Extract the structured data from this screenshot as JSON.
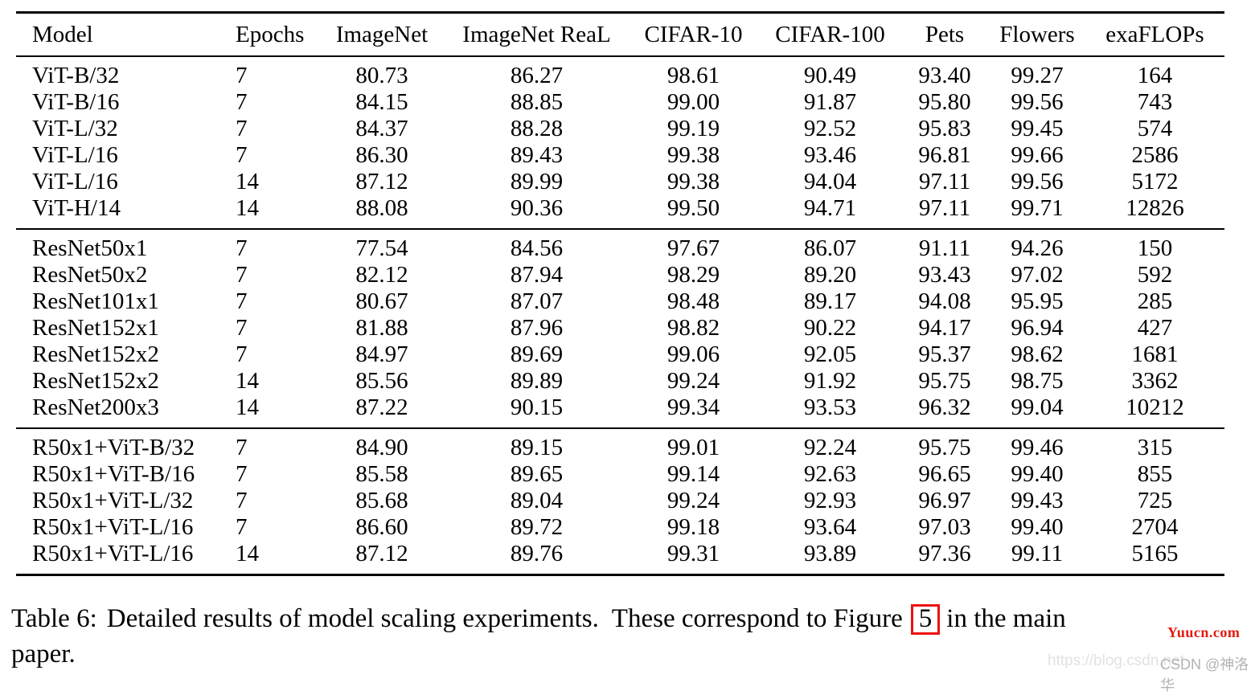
{
  "table": {
    "columns": [
      {
        "label": "Model",
        "align": "left"
      },
      {
        "label": "Epochs",
        "align": "left"
      },
      {
        "label": "ImageNet",
        "align": "center"
      },
      {
        "label": "ImageNet ReaL",
        "align": "center"
      },
      {
        "label": "CIFAR-10",
        "align": "center"
      },
      {
        "label": "CIFAR-100",
        "align": "center"
      },
      {
        "label": "Pets",
        "align": "center"
      },
      {
        "label": "Flowers",
        "align": "center"
      },
      {
        "label": "exaFLOPs",
        "align": "center"
      }
    ],
    "sections": [
      {
        "name": "vit-models",
        "rows": [
          [
            "ViT-B/32",
            "7",
            "80.73",
            "86.27",
            "98.61",
            "90.49",
            "93.40",
            "99.27",
            "164"
          ],
          [
            "ViT-B/16",
            "7",
            "84.15",
            "88.85",
            "99.00",
            "91.87",
            "95.80",
            "99.56",
            "743"
          ],
          [
            "ViT-L/32",
            "7",
            "84.37",
            "88.28",
            "99.19",
            "92.52",
            "95.83",
            "99.45",
            "574"
          ],
          [
            "ViT-L/16",
            "7",
            "86.30",
            "89.43",
            "99.38",
            "93.46",
            "96.81",
            "99.66",
            "2586"
          ],
          [
            "ViT-L/16",
            "14",
            "87.12",
            "89.99",
            "99.38",
            "94.04",
            "97.11",
            "99.56",
            "5172"
          ],
          [
            "ViT-H/14",
            "14",
            "88.08",
            "90.36",
            "99.50",
            "94.71",
            "97.11",
            "99.71",
            "12826"
          ]
        ]
      },
      {
        "name": "resnet-models",
        "rows": [
          [
            "ResNet50x1",
            "7",
            "77.54",
            "84.56",
            "97.67",
            "86.07",
            "91.11",
            "94.26",
            "150"
          ],
          [
            "ResNet50x2",
            "7",
            "82.12",
            "87.94",
            "98.29",
            "89.20",
            "93.43",
            "97.02",
            "592"
          ],
          [
            "ResNet101x1",
            "7",
            "80.67",
            "87.07",
            "98.48",
            "89.17",
            "94.08",
            "95.95",
            "285"
          ],
          [
            "ResNet152x1",
            "7",
            "81.88",
            "87.96",
            "98.82",
            "90.22",
            "94.17",
            "96.94",
            "427"
          ],
          [
            "ResNet152x2",
            "7",
            "84.97",
            "89.69",
            "99.06",
            "92.05",
            "95.37",
            "98.62",
            "1681"
          ],
          [
            "ResNet152x2",
            "14",
            "85.56",
            "89.89",
            "99.24",
            "91.92",
            "95.75",
            "98.75",
            "3362"
          ],
          [
            "ResNet200x3",
            "14",
            "87.22",
            "90.15",
            "99.34",
            "93.53",
            "96.32",
            "99.04",
            "10212"
          ]
        ]
      },
      {
        "name": "hybrid-models",
        "rows": [
          [
            "R50x1+ViT-B/32",
            "7",
            "84.90",
            "89.15",
            "99.01",
            "92.24",
            "95.75",
            "99.46",
            "315"
          ],
          [
            "R50x1+ViT-B/16",
            "7",
            "85.58",
            "89.65",
            "99.14",
            "92.63",
            "96.65",
            "99.40",
            "855"
          ],
          [
            "R50x1+ViT-L/32",
            "7",
            "85.68",
            "89.04",
            "99.24",
            "92.93",
            "96.97",
            "99.43",
            "725"
          ],
          [
            "R50x1+ViT-L/16",
            "7",
            "86.60",
            "89.72",
            "99.18",
            "93.64",
            "97.03",
            "99.40",
            "2704"
          ],
          [
            "R50x1+ViT-L/16",
            "14",
            "87.12",
            "89.76",
            "99.31",
            "93.89",
            "97.36",
            "99.11",
            "5165"
          ]
        ]
      }
    ]
  },
  "caption": {
    "label": "Table 6:",
    "before_ref": "Detailed results of model scaling experiments.  These correspond to Figure",
    "figure_ref": "5",
    "after_ref": "in the main",
    "line2": "paper.",
    "ref_box_color": "#ee1111"
  },
  "watermarks": {
    "yuucn": {
      "text": "Yuucn.com",
      "color": "#e41b10"
    },
    "csdn_url": {
      "text": "https://blog.csdn.net",
      "color": "#e2e2e2"
    },
    "csdn_handle": {
      "text": "CSDN @神洛华",
      "color": "#b3b3b3"
    }
  }
}
